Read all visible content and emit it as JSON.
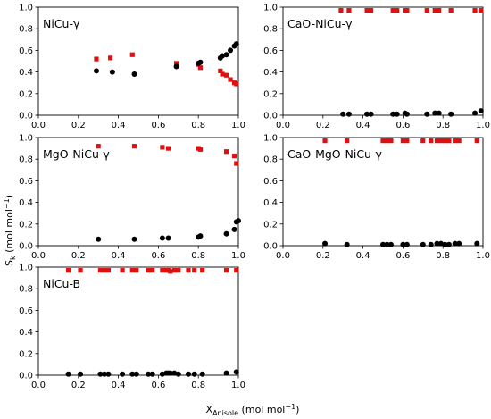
{
  "figure": {
    "ylabel": {
      "main": "S",
      "sub": "k",
      "units": " (mol mol",
      "sup": "−1",
      "close": ")"
    },
    "xlabel": {
      "main": "X",
      "sub": "Anisole",
      "units": " (mol mol",
      "sup": "−1",
      "close": ")"
    }
  },
  "colors": {
    "red_series": "#dd1111",
    "black_series": "#000000",
    "axes": "#000000"
  },
  "chart_data": [
    {
      "type": "scatter",
      "label": "NiCu-γ",
      "xlim": [
        0.0,
        1.0
      ],
      "ylim": [
        0.0,
        1.0
      ],
      "xticks": [
        "0.0",
        "0.2",
        "0.4",
        "0.6",
        "0.8",
        "1.0"
      ],
      "yticks": [
        "0.0",
        "0.2",
        "0.4",
        "0.6",
        "0.8",
        "1.0"
      ],
      "grid": false,
      "series": [
        {
          "marker": "square",
          "color": "red",
          "points": [
            [
              0.29,
              0.52
            ],
            [
              0.36,
              0.53
            ],
            [
              0.47,
              0.56
            ],
            [
              0.69,
              0.48
            ],
            [
              0.8,
              0.47
            ],
            [
              0.81,
              0.44
            ],
            [
              0.91,
              0.41
            ],
            [
              0.92,
              0.38
            ],
            [
              0.94,
              0.37
            ],
            [
              0.96,
              0.33
            ],
            [
              0.98,
              0.3
            ],
            [
              0.99,
              0.29
            ]
          ]
        },
        {
          "marker": "circle",
          "color": "black",
          "points": [
            [
              0.29,
              0.41
            ],
            [
              0.37,
              0.4
            ],
            [
              0.48,
              0.38
            ],
            [
              0.69,
              0.45
            ],
            [
              0.8,
              0.48
            ],
            [
              0.81,
              0.49
            ],
            [
              0.91,
              0.53
            ],
            [
              0.92,
              0.55
            ],
            [
              0.94,
              0.56
            ],
            [
              0.96,
              0.6
            ],
            [
              0.98,
              0.64
            ],
            [
              0.99,
              0.66
            ]
          ]
        }
      ]
    },
    {
      "type": "scatter",
      "label": "CaO-NiCu-γ",
      "xlim": [
        0.0,
        1.0
      ],
      "ylim": [
        0.0,
        1.0
      ],
      "xticks": [
        "0.0",
        "0.2",
        "0.4",
        "0.6",
        "0.8",
        "1.0"
      ],
      "yticks": [
        "0.0",
        "0.2",
        "0.4",
        "0.6",
        "0.8",
        "1.0"
      ],
      "grid": false,
      "series": [
        {
          "marker": "square",
          "color": "red",
          "points": [
            [
              0.29,
              0.97
            ],
            [
              0.33,
              0.97
            ],
            [
              0.42,
              0.97
            ],
            [
              0.44,
              0.97
            ],
            [
              0.55,
              0.97
            ],
            [
              0.57,
              0.97
            ],
            [
              0.61,
              0.97
            ],
            [
              0.62,
              0.97
            ],
            [
              0.72,
              0.97
            ],
            [
              0.76,
              0.97
            ],
            [
              0.78,
              0.97
            ],
            [
              0.84,
              0.97
            ],
            [
              0.96,
              0.97
            ],
            [
              0.99,
              0.97
            ]
          ]
        },
        {
          "marker": "circle",
          "color": "black",
          "points": [
            [
              0.3,
              0.01
            ],
            [
              0.33,
              0.01
            ],
            [
              0.42,
              0.01
            ],
            [
              0.44,
              0.01
            ],
            [
              0.55,
              0.01
            ],
            [
              0.57,
              0.01
            ],
            [
              0.61,
              0.02
            ],
            [
              0.62,
              0.01
            ],
            [
              0.72,
              0.01
            ],
            [
              0.76,
              0.02
            ],
            [
              0.78,
              0.02
            ],
            [
              0.84,
              0.01
            ],
            [
              0.96,
              0.02
            ],
            [
              0.99,
              0.04
            ]
          ]
        }
      ]
    },
    {
      "type": "scatter",
      "label": "MgO-NiCu-γ",
      "xlim": [
        0.0,
        1.0
      ],
      "ylim": [
        0.0,
        1.0
      ],
      "xticks": [
        "0.0",
        "0.2",
        "0.4",
        "0.6",
        "0.8",
        "1.0"
      ],
      "yticks": [
        "0.0",
        "0.2",
        "0.4",
        "0.6",
        "0.8",
        "1.0"
      ],
      "grid": false,
      "series": [
        {
          "marker": "square",
          "color": "red",
          "points": [
            [
              0.3,
              0.92
            ],
            [
              0.48,
              0.92
            ],
            [
              0.62,
              0.91
            ],
            [
              0.65,
              0.9
            ],
            [
              0.8,
              0.9
            ],
            [
              0.81,
              0.89
            ],
            [
              0.94,
              0.87
            ],
            [
              0.98,
              0.83
            ],
            [
              0.99,
              0.76
            ]
          ]
        },
        {
          "marker": "circle",
          "color": "black",
          "points": [
            [
              0.3,
              0.06
            ],
            [
              0.48,
              0.06
            ],
            [
              0.62,
              0.07
            ],
            [
              0.65,
              0.07
            ],
            [
              0.8,
              0.08
            ],
            [
              0.81,
              0.09
            ],
            [
              0.94,
              0.11
            ],
            [
              0.98,
              0.15
            ],
            [
              0.99,
              0.22
            ],
            [
              1.0,
              0.23
            ]
          ]
        }
      ]
    },
    {
      "type": "scatter",
      "label": "CaO-MgO-NiCu-γ",
      "xlim": [
        0.0,
        1.0
      ],
      "ylim": [
        0.0,
        1.0
      ],
      "xticks": [
        "0.0",
        "0.2",
        "0.4",
        "0.6",
        "0.8",
        "1.0"
      ],
      "yticks": [
        "0.0",
        "0.2",
        "0.4",
        "0.6",
        "0.8",
        "1.0"
      ],
      "grid": false,
      "series": [
        {
          "marker": "square",
          "color": "red",
          "points": [
            [
              0.21,
              0.97
            ],
            [
              0.32,
              0.97
            ],
            [
              0.5,
              0.97
            ],
            [
              0.52,
              0.97
            ],
            [
              0.54,
              0.97
            ],
            [
              0.6,
              0.97
            ],
            [
              0.62,
              0.97
            ],
            [
              0.7,
              0.97
            ],
            [
              0.74,
              0.97
            ],
            [
              0.77,
              0.97
            ],
            [
              0.79,
              0.97
            ],
            [
              0.81,
              0.97
            ],
            [
              0.83,
              0.97
            ],
            [
              0.86,
              0.97
            ],
            [
              0.88,
              0.97
            ],
            [
              0.97,
              0.97
            ]
          ]
        },
        {
          "marker": "circle",
          "color": "black",
          "points": [
            [
              0.21,
              0.02
            ],
            [
              0.32,
              0.01
            ],
            [
              0.5,
              0.01
            ],
            [
              0.52,
              0.01
            ],
            [
              0.54,
              0.01
            ],
            [
              0.6,
              0.01
            ],
            [
              0.62,
              0.01
            ],
            [
              0.7,
              0.01
            ],
            [
              0.74,
              0.01
            ],
            [
              0.77,
              0.02
            ],
            [
              0.79,
              0.02
            ],
            [
              0.81,
              0.01
            ],
            [
              0.83,
              0.01
            ],
            [
              0.86,
              0.02
            ],
            [
              0.88,
              0.02
            ],
            [
              0.97,
              0.02
            ]
          ]
        }
      ]
    },
    {
      "type": "scatter",
      "label": "NiCu-B",
      "xlim": [
        0.0,
        1.0
      ],
      "ylim": [
        0.0,
        1.0
      ],
      "xticks": [
        "0.0",
        "0.2",
        "0.4",
        "0.6",
        "0.8",
        "1.0"
      ],
      "yticks": [
        "0.0",
        "0.2",
        "0.4",
        "0.6",
        "0.8",
        "1.0"
      ],
      "grid": false,
      "series": [
        {
          "marker": "square",
          "color": "red",
          "points": [
            [
              0.15,
              0.97
            ],
            [
              0.21,
              0.97
            ],
            [
              0.31,
              0.97
            ],
            [
              0.33,
              0.97
            ],
            [
              0.35,
              0.97
            ],
            [
              0.42,
              0.97
            ],
            [
              0.47,
              0.97
            ],
            [
              0.49,
              0.97
            ],
            [
              0.55,
              0.97
            ],
            [
              0.57,
              0.97
            ],
            [
              0.62,
              0.97
            ],
            [
              0.64,
              0.97
            ],
            [
              0.65,
              0.97
            ],
            [
              0.66,
              0.96
            ],
            [
              0.68,
              0.97
            ],
            [
              0.7,
              0.97
            ],
            [
              0.75,
              0.97
            ],
            [
              0.78,
              0.97
            ],
            [
              0.82,
              0.97
            ],
            [
              0.94,
              0.97
            ],
            [
              0.99,
              0.97
            ]
          ]
        },
        {
          "marker": "circle",
          "color": "black",
          "points": [
            [
              0.15,
              0.01
            ],
            [
              0.21,
              0.01
            ],
            [
              0.31,
              0.01
            ],
            [
              0.33,
              0.01
            ],
            [
              0.35,
              0.01
            ],
            [
              0.42,
              0.01
            ],
            [
              0.47,
              0.01
            ],
            [
              0.49,
              0.01
            ],
            [
              0.55,
              0.01
            ],
            [
              0.57,
              0.01
            ],
            [
              0.62,
              0.01
            ],
            [
              0.64,
              0.02
            ],
            [
              0.65,
              0.02
            ],
            [
              0.66,
              0.02
            ],
            [
              0.68,
              0.02
            ],
            [
              0.7,
              0.01
            ],
            [
              0.75,
              0.01
            ],
            [
              0.78,
              0.01
            ],
            [
              0.82,
              0.01
            ],
            [
              0.94,
              0.02
            ],
            [
              0.99,
              0.03
            ]
          ]
        }
      ]
    }
  ]
}
